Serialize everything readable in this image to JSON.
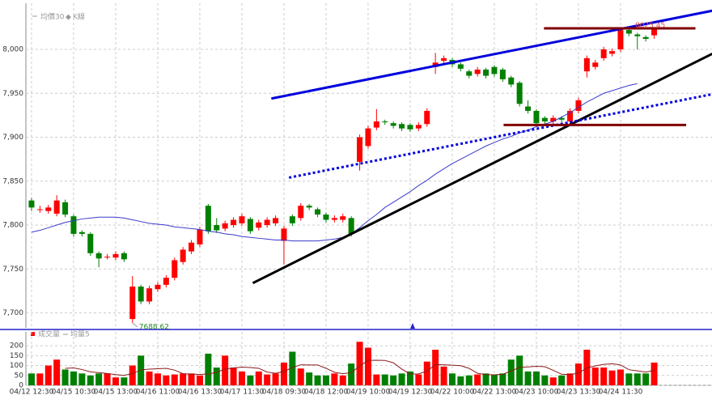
{
  "chart_data": [
    {
      "type": "candlestick",
      "up_color": "#ff0000",
      "down_color": "#008000",
      "series_name": "K線",
      "xlim": [
        -0.67,
        80.87
      ],
      "ylim": [
        7683,
        8047
      ],
      "yticks": [
        {
          "value": 7700,
          "label": "7,700"
        },
        {
          "value": 7750,
          "label": "7,750"
        },
        {
          "value": 7800,
          "label": "7,800"
        },
        {
          "value": 7850,
          "label": "7,850"
        },
        {
          "value": 7900,
          "label": "7,900"
        },
        {
          "value": 7950,
          "label": "7,950"
        },
        {
          "value": 8000,
          "label": "8,000"
        }
      ],
      "grid": true,
      "open": [
        7828,
        7818,
        7816,
        7813,
        7826,
        7810,
        7792,
        7790,
        7768,
        7764,
        7763,
        7768,
        7693,
        7730,
        7713,
        7727,
        7732,
        7740,
        7758,
        7770,
        7778,
        7822,
        7800,
        7796,
        7800,
        7802,
        7807,
        7797,
        7800,
        7802,
        7782,
        7810,
        7808,
        7822,
        7818,
        7812,
        7806,
        7806,
        7808,
        7872,
        7890,
        7911,
        7918,
        7916,
        7915,
        7914,
        7910,
        7915,
        7980,
        7987,
        7988,
        7983,
        7975,
        7972,
        7977,
        7980,
        7977,
        7968,
        7962,
        7935,
        7930,
        7922,
        7918,
        7922,
        7918,
        7930,
        7975,
        7980,
        7990,
        7995,
        8000,
        8022,
        8017,
        8014,
        8016
      ],
      "high": [
        7831,
        7822,
        7823,
        7834,
        7829,
        7812,
        7794,
        7792,
        7770,
        7767,
        7770,
        7770,
        7742,
        7732,
        7731,
        7735,
        7743,
        7763,
        7775,
        7783,
        7798,
        7824,
        7808,
        7805,
        7809,
        7813,
        7809,
        7806,
        7809,
        7811,
        7799,
        7812,
        7825,
        7824,
        7820,
        7814,
        7811,
        7813,
        7810,
        7903,
        7913,
        7932,
        7920,
        7918,
        7917,
        7916,
        7917,
        7933,
        7996,
        7993,
        7990,
        7985,
        7977,
        7980,
        7979,
        7982,
        7979,
        7970,
        7964,
        7942,
        7932,
        7924,
        7925,
        7924,
        7933,
        7945,
        7993,
        7988,
        8003,
        8001,
        8025.45,
        8024,
        8019,
        8016,
        8025
      ],
      "low": [
        7816,
        7814,
        7813,
        7810,
        7809,
        7787,
        7787,
        7765,
        7752,
        7761,
        7760,
        7758,
        7688.62,
        7710,
        7710,
        7724,
        7729,
        7737,
        7755,
        7767,
        7775,
        7790,
        7791,
        7793,
        7797,
        7799,
        7790,
        7794,
        7797,
        7799,
        7755,
        7799,
        7805,
        7817,
        7809,
        7803,
        7803,
        7803,
        7787,
        7862,
        7887,
        7908,
        7914,
        7910,
        7907,
        7906,
        7907,
        7912,
        7972,
        7984,
        7980,
        7975,
        7967,
        7969,
        7967,
        7969,
        7963,
        7957,
        7935,
        7927,
        7913,
        7915,
        7915,
        7917,
        7915,
        7927,
        7968,
        7977,
        7987,
        7992,
        7997,
        8015,
        8000,
        8009,
        8012
      ],
      "close": [
        7820,
        7818,
        7820,
        7828,
        7812,
        7790,
        7790,
        7768,
        7762,
        7764,
        7767,
        7761,
        7730,
        7713,
        7728,
        7732,
        7740,
        7760,
        7772,
        7780,
        7795,
        7793,
        7794,
        7802,
        7806,
        7810,
        7793,
        7803,
        7806,
        7808,
        7796,
        7802,
        7822,
        7820,
        7812,
        7806,
        7808,
        7810,
        7790,
        7900,
        7910,
        7918,
        7917,
        7913,
        7910,
        7909,
        7914,
        7930,
        7985,
        7990,
        7983,
        7978,
        7970,
        7977,
        7970,
        7972,
        7966,
        7960,
        7938,
        7930,
        7916,
        7918,
        7922,
        7920,
        7930,
        7942,
        7990,
        7985,
        8000,
        7998,
        8022,
        8018,
        8015,
        8012,
        8024
      ],
      "ma": {
        "name": "均價30",
        "color": "#3a3acc",
        "values": [
          7792,
          7794,
          7797,
          7800,
          7803,
          7805,
          7807,
          7808,
          7809,
          7809,
          7809,
          7808,
          7806,
          7804,
          7802,
          7801,
          7800,
          7798,
          7797,
          7796,
          7795,
          7793,
          7792,
          7790,
          7789,
          7787,
          7786,
          7785,
          7784,
          7783,
          7783,
          7782,
          7782,
          7782,
          7782,
          7783,
          7784,
          7786,
          7790,
          7797,
          7805,
          7812,
          7820,
          7826,
          7832,
          7838,
          7845,
          7851,
          7858,
          7864,
          7870,
          7875,
          7880,
          7885,
          7890,
          7894,
          7898,
          7901,
          7905,
          7908,
          7912,
          7915,
          7918,
          7923,
          7928,
          7934,
          7940,
          7945,
          7950,
          7953,
          7956,
          7959,
          7961,
          null,
          null
        ]
      },
      "lines": [
        {
          "color": "#0000dd",
          "width": 3,
          "dashed": false,
          "points": [
            [
              28.5,
              7944
            ],
            [
              80.9,
              8044
            ]
          ]
        },
        {
          "color": "#000000",
          "width": 3,
          "dashed": false,
          "points": [
            [
              26.3,
              7734
            ],
            [
              80.9,
              7995
            ]
          ]
        },
        {
          "color": "#0000dd",
          "width": 3,
          "dashed": true,
          "points": [
            [
              30.6,
              7854
            ],
            [
              80.9,
              7949
            ]
          ]
        },
        {
          "color": "#800000",
          "width": 3,
          "dashed": false,
          "points": [
            [
              60.9,
              8024
            ],
            [
              78.9,
              8024
            ]
          ]
        },
        {
          "color": "#800000",
          "width": 3,
          "dashed": false,
          "points": [
            [
              56.1,
              7914
            ],
            [
              77.8,
              7914
            ]
          ]
        }
      ]
    },
    {
      "type": "bar",
      "series_name": "成交量",
      "ylim": [
        0,
        270
      ],
      "yticks": [
        0,
        50,
        100,
        150,
        200
      ],
      "categories": [
        "04/12 12:30",
        null,
        null,
        null,
        null,
        "04/15 10:30",
        null,
        null,
        null,
        null,
        "04/15 13:00",
        null,
        null,
        null,
        null,
        "04/16 11:00",
        null,
        null,
        null,
        null,
        "04/16 13:30",
        null,
        null,
        null,
        null,
        "04/17 11:30",
        null,
        null,
        null,
        null,
        "04/18 09:30",
        null,
        null,
        null,
        null,
        "04/18 12:00",
        null,
        null,
        null,
        null,
        "04/19 10:00",
        null,
        null,
        null,
        null,
        "04/19 12:30",
        null,
        null,
        null,
        null,
        "04/22 10:00",
        null,
        null,
        null,
        null,
        "04/22 13:00",
        null,
        null,
        null,
        null,
        "04/23 10:00",
        null,
        null,
        null,
        null,
        "04/23 13:30",
        null,
        null,
        null,
        null,
        "04/24 11:30",
        null,
        null,
        null,
        null
      ],
      "values": [
        60,
        60,
        100,
        130,
        80,
        70,
        60,
        50,
        60,
        60,
        40,
        40,
        100,
        150,
        70,
        60,
        50,
        55,
        60,
        60,
        50,
        160,
        90,
        150,
        90,
        70,
        50,
        70,
        55,
        60,
        115,
        170,
        85,
        65,
        50,
        50,
        60,
        50,
        110,
        220,
        190,
        55,
        55,
        50,
        60,
        70,
        55,
        120,
        180,
        95,
        60,
        45,
        50,
        55,
        60,
        55,
        60,
        130,
        150,
        70,
        70,
        50,
        40,
        50,
        60,
        110,
        180,
        90,
        90,
        75,
        80,
        60,
        60,
        60,
        115
      ],
      "ma": {
        "name": "均量5",
        "color": "#8b1a1a",
        "values": [
          null,
          null,
          null,
          null,
          86,
          88,
          80,
          68,
          64,
          60,
          54,
          50,
          60,
          78,
          82,
          84,
          86,
          77,
          59,
          57,
          55,
          57,
          66,
          82,
          88,
          92,
          90,
          86,
          67,
          61,
          70,
          90,
          104,
          103,
          103,
          86,
          66,
          59,
          64,
          98,
          126,
          127,
          126,
          114,
          82,
          57,
          58,
          72,
          105,
          104,
          102,
          99,
          86,
          61,
          54,
          53,
          56,
          72,
          91,
          93,
          96,
          94,
          76,
          56,
          54,
          62,
          88,
          98,
          106,
          109,
          103,
          79,
          73,
          67,
          75
        ]
      }
    }
  ]
}
